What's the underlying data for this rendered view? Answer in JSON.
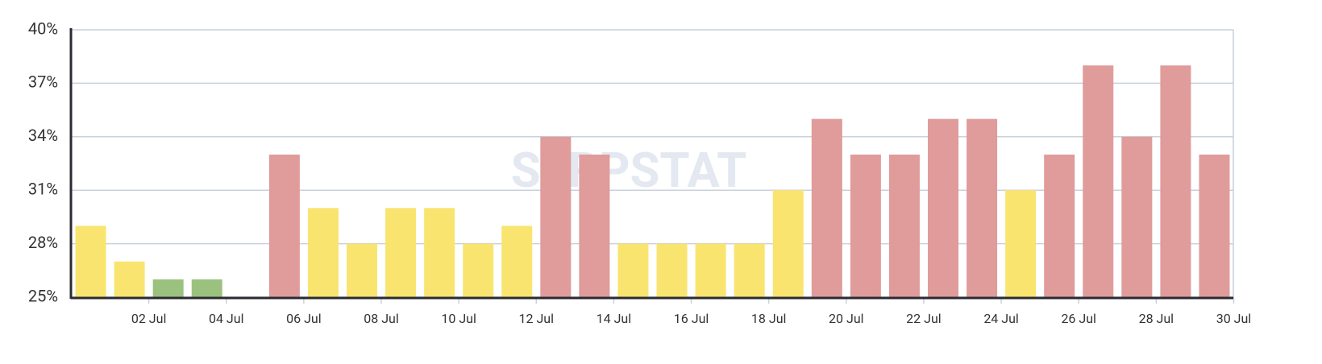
{
  "chart_data": {
    "type": "bar",
    "watermark": "SERPSTAT",
    "categories": [
      null,
      "02 Jul",
      null,
      "04 Jul",
      null,
      "06 Jul",
      null,
      "08 Jul",
      null,
      "10 Jul",
      null,
      "12 Jul",
      null,
      "14 Jul",
      null,
      "16 Jul",
      null,
      "18 Jul",
      null,
      "20 Jul",
      null,
      "22 Jul",
      null,
      "24 Jul",
      null,
      "26 Jul",
      null,
      "28 Jul",
      null,
      "30 Jul"
    ],
    "values": [
      29,
      27,
      26,
      26,
      null,
      33,
      30,
      28,
      30,
      30,
      28,
      29,
      34,
      33,
      28,
      28,
      28,
      28,
      31,
      35,
      33,
      33,
      35,
      35,
      31,
      33,
      38,
      34,
      38,
      33
    ],
    "colors": [
      "#f9e46f",
      "#f9e46f",
      "#9bc17f",
      "#9bc17f",
      null,
      "#e09b9b",
      "#f9e46f",
      "#f9e46f",
      "#f9e46f",
      "#f9e46f",
      "#f9e46f",
      "#f9e46f",
      "#e09b9b",
      "#e09b9b",
      "#f9e46f",
      "#f9e46f",
      "#f9e46f",
      "#f9e46f",
      "#f9e46f",
      "#e09b9b",
      "#e09b9b",
      "#e09b9b",
      "#e09b9b",
      "#e09b9b",
      "#f9e46f",
      "#e09b9b",
      "#e09b9b",
      "#e09b9b",
      "#e09b9b",
      "#e09b9b"
    ],
    "ylim": [
      25,
      40
    ],
    "yticks": [
      {
        "value": 25,
        "label": "25%"
      },
      {
        "value": 28,
        "label": "28%"
      },
      {
        "value": 31,
        "label": "31%"
      },
      {
        "value": 34,
        "label": "34%"
      },
      {
        "value": 37,
        "label": "37%"
      },
      {
        "value": 40,
        "label": "40%"
      }
    ],
    "grid": true
  }
}
